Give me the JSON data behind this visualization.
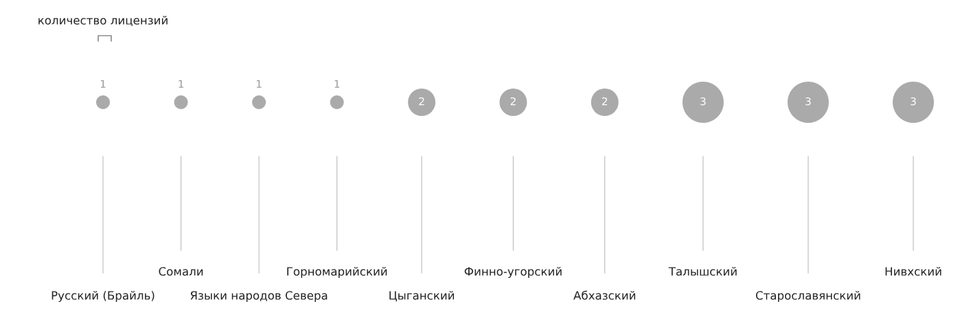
{
  "chart_data": {
    "type": "other",
    "legend_title": "количество лицензий",
    "categories": [
      "Русский (Брайль)",
      "Сомали",
      "Языки народов Севера",
      "Горномарийский",
      "Цыганский",
      "Финно-угорский",
      "Абхазский",
      "Талышский",
      "Старославянский",
      "Нивхский"
    ],
    "values": [
      1,
      1,
      1,
      1,
      2,
      2,
      2,
      3,
      3,
      3
    ],
    "color": "#aaaaaa",
    "data_labels": true
  }
}
